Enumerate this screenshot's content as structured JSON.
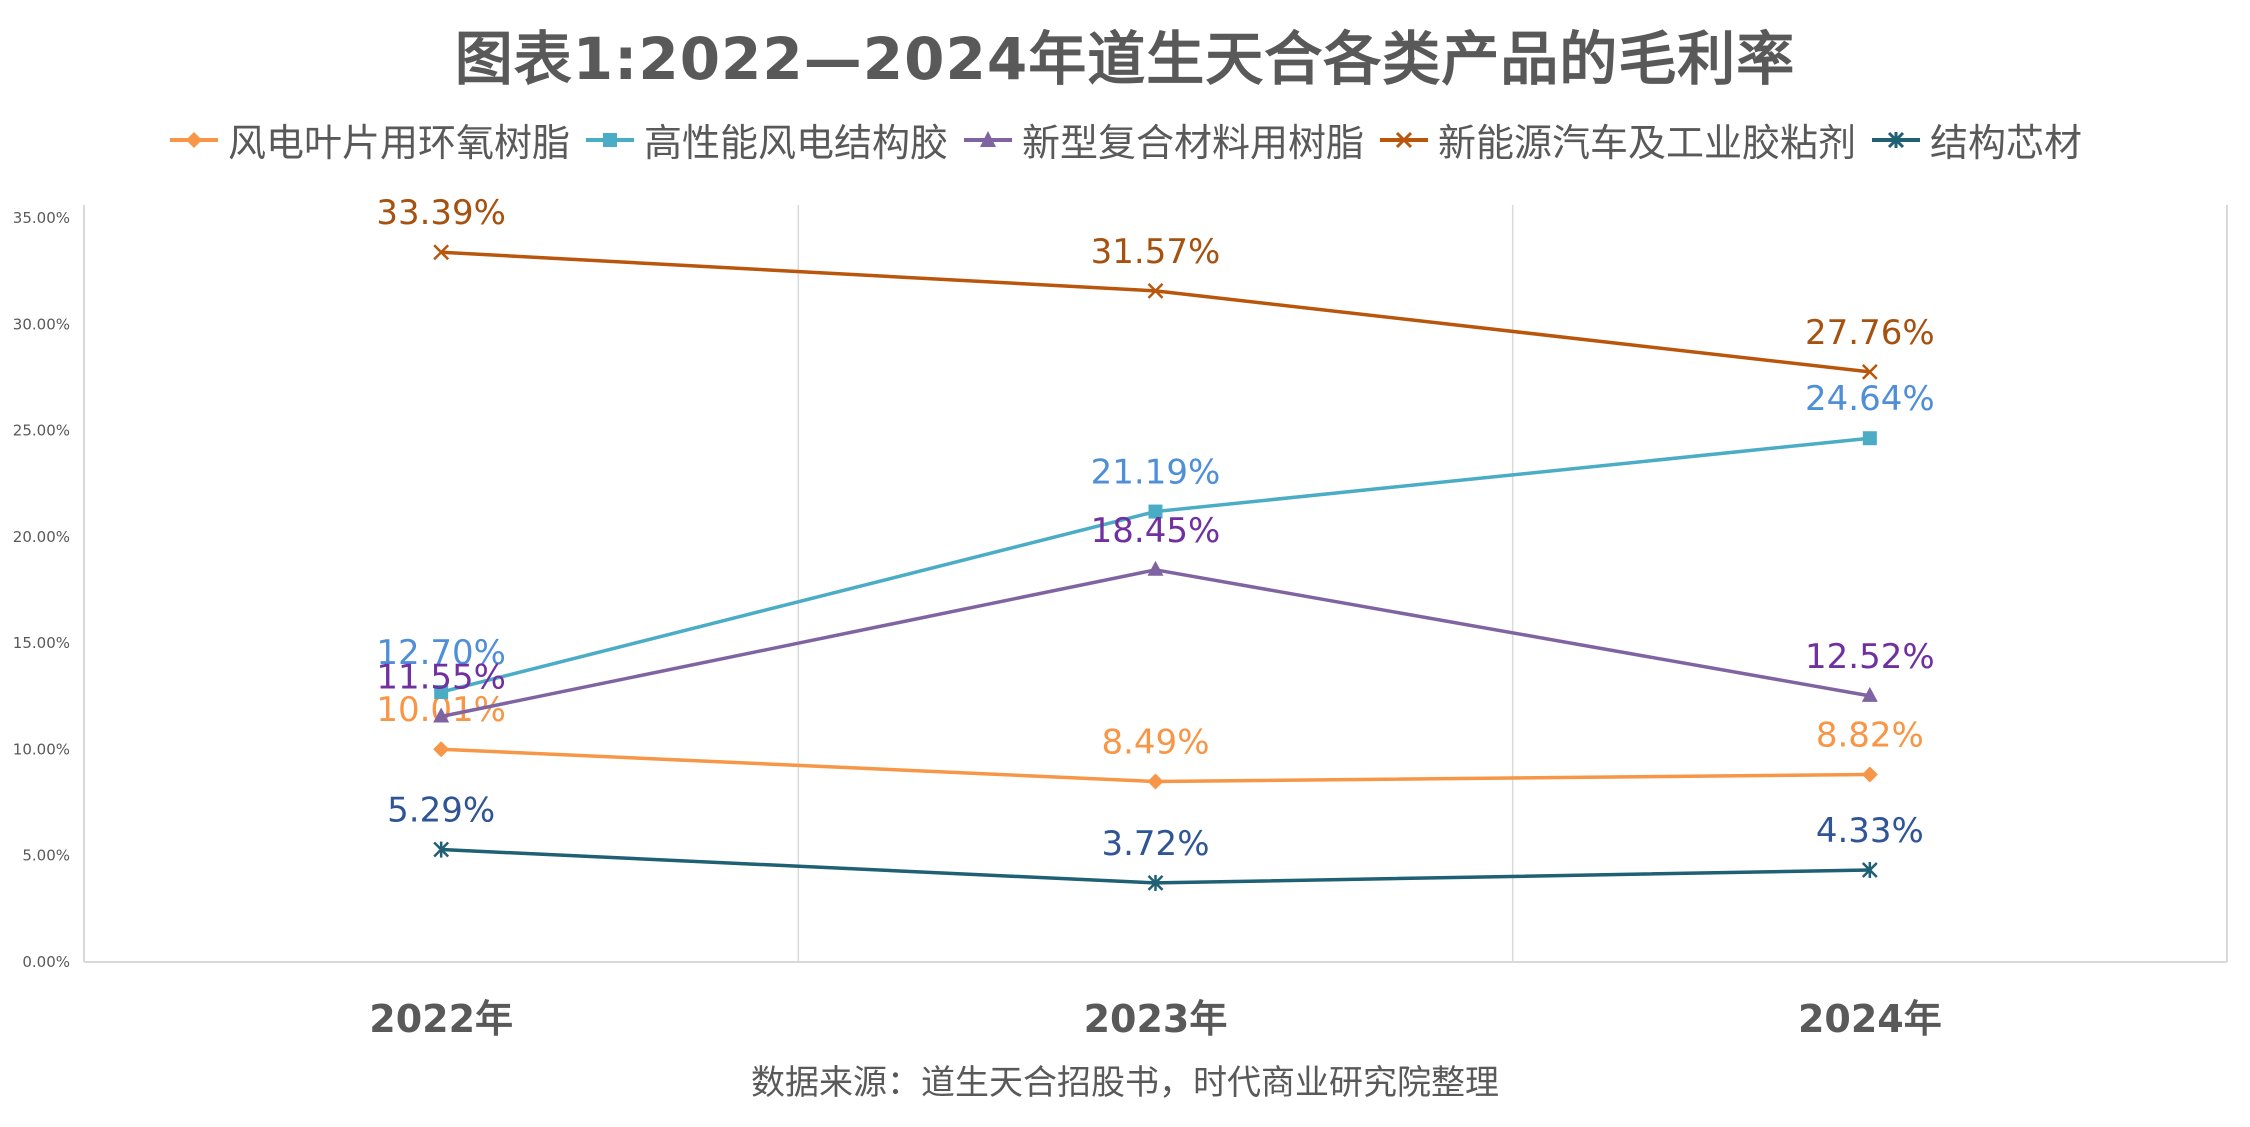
{
  "chart_data": {
    "type": "line",
    "title": "图表1:2022—2024年道生天合各类产品的毛利率",
    "categories": [
      "2022年",
      "2023年",
      "2024年"
    ],
    "xlabel": "",
    "ylabel": "",
    "ylim": [
      0,
      35
    ],
    "yticks": [
      "0.00%",
      "5.00%",
      "10.00%",
      "15.00%",
      "20.00%",
      "25.00%",
      "30.00%",
      "35.00%"
    ],
    "grid": "vertical",
    "legend_position": "top",
    "source": "数据来源：道生天合招股书，时代商业研究院整理",
    "series": [
      {
        "name": "风电叶片用环氧树脂",
        "values": [
          10.01,
          8.49,
          8.82
        ],
        "labels": [
          "10.01%",
          "8.49%",
          "8.82%"
        ],
        "color": "#F79646",
        "label_color": "#F79646",
        "marker": "diamond"
      },
      {
        "name": "高性能风电结构胶",
        "values": [
          12.7,
          21.19,
          24.64
        ],
        "labels": [
          "12.70%",
          "21.19%",
          "24.64%"
        ],
        "color": "#4BACC6",
        "label_color": "#4F8FD8",
        "marker": "square"
      },
      {
        "name": "新型复合材料用树脂",
        "values": [
          11.55,
          18.45,
          12.52
        ],
        "labels": [
          "11.55%",
          "18.45%",
          "12.52%"
        ],
        "color": "#8064A2",
        "label_color": "#7030A0",
        "marker": "triangle"
      },
      {
        "name": "新能源汽车及工业胶粘剂",
        "values": [
          33.39,
          31.57,
          27.76
        ],
        "labels": [
          "33.39%",
          "31.57%",
          "27.76%"
        ],
        "color": "#B9560B",
        "label_color": "#A5510F",
        "marker": "x"
      },
      {
        "name": "结构芯材",
        "values": [
          5.29,
          3.72,
          4.33
        ],
        "labels": [
          "5.29%",
          "3.72%",
          "4.33%"
        ],
        "color": "#1F6075",
        "label_color": "#2F5597",
        "marker": "star"
      }
    ]
  }
}
